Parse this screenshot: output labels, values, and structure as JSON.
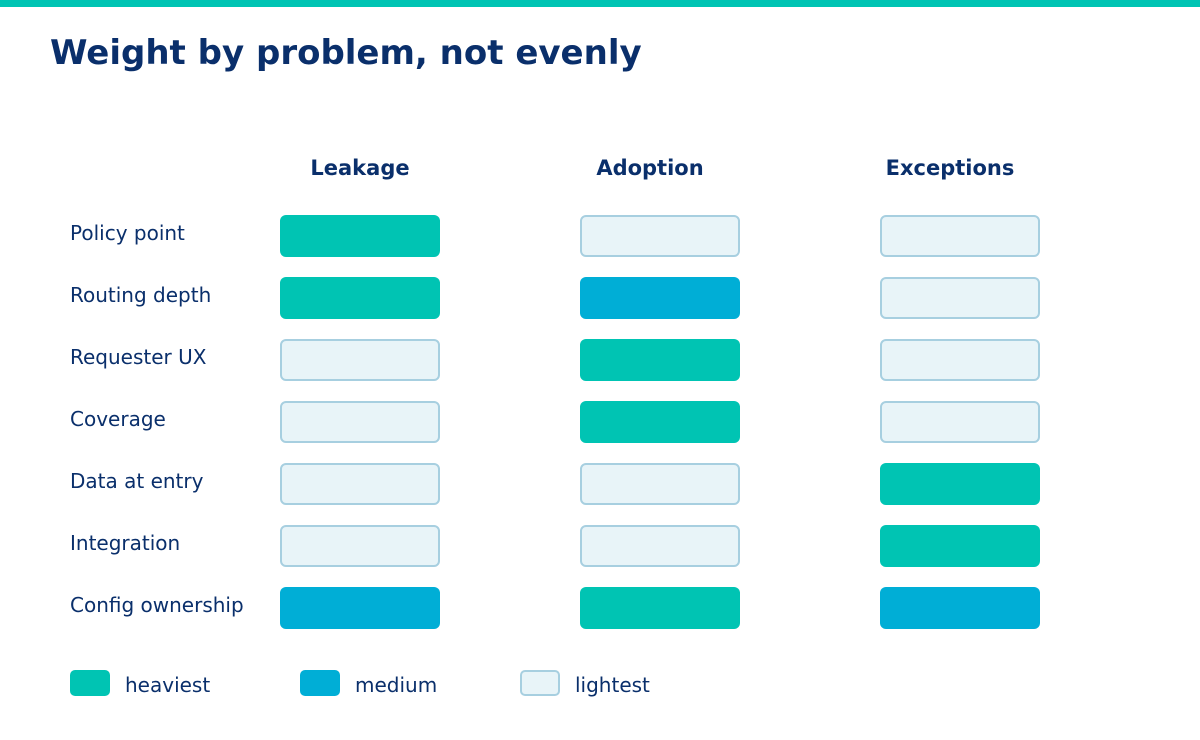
{
  "title": "Weight by problem, not evenly",
  "colors": {
    "accent_bar": "#00c4b3",
    "heaviest": "#00c4b3",
    "medium": "#00aed6",
    "lightest": "#e8f4f8",
    "text": "#0a2f6b"
  },
  "columns": [
    "Leakage",
    "Adoption",
    "Exceptions"
  ],
  "rows": [
    {
      "label": "Policy point",
      "weights": [
        "heaviest",
        "lightest",
        "lightest"
      ]
    },
    {
      "label": "Routing depth",
      "weights": [
        "heaviest",
        "medium",
        "lightest"
      ]
    },
    {
      "label": "Requester UX",
      "weights": [
        "lightest",
        "heaviest",
        "lightest"
      ]
    },
    {
      "label": "Coverage",
      "weights": [
        "lightest",
        "heaviest",
        "lightest"
      ]
    },
    {
      "label": "Data at entry",
      "weights": [
        "lightest",
        "lightest",
        "heaviest"
      ]
    },
    {
      "label": "Integration",
      "weights": [
        "lightest",
        "lightest",
        "heaviest"
      ]
    },
    {
      "label": "Config ownership",
      "weights": [
        "medium",
        "heaviest",
        "medium"
      ]
    }
  ],
  "legend": {
    "heaviest": "heaviest",
    "medium": "medium",
    "lightest": "lightest"
  }
}
